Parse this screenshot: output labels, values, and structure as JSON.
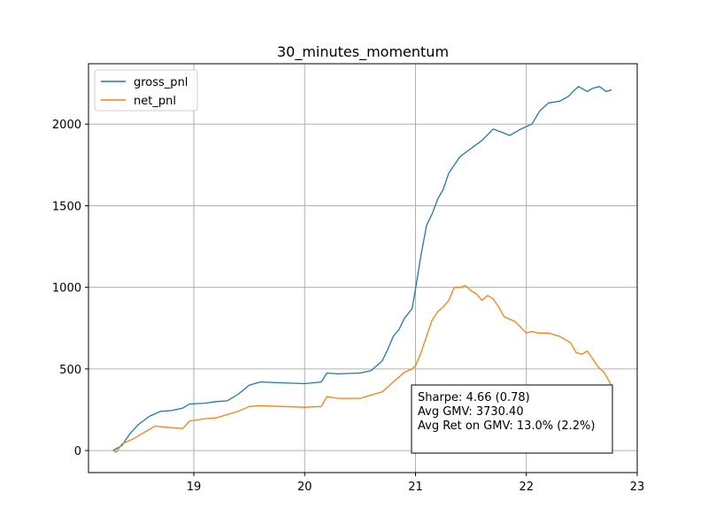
{
  "chart_data": {
    "type": "line",
    "title": "30_minutes_momentum",
    "xlabel": "",
    "ylabel": "",
    "xlim": [
      18.05,
      23.0
    ],
    "ylim": [
      -135,
      2370
    ],
    "x_ticks": [
      19,
      20,
      21,
      22,
      23
    ],
    "y_ticks": [
      0,
      500,
      1000,
      1500,
      2000
    ],
    "grid": true,
    "legend": "top-left",
    "series": [
      {
        "name": "gross_pnl",
        "color": "#1f77b4",
        "points": [
          [
            18.27,
            0
          ],
          [
            18.35,
            30
          ],
          [
            18.42,
            100
          ],
          [
            18.5,
            160
          ],
          [
            18.6,
            210
          ],
          [
            18.7,
            240
          ],
          [
            18.8,
            245
          ],
          [
            18.9,
            260
          ],
          [
            18.96,
            285
          ],
          [
            19.1,
            290
          ],
          [
            19.2,
            300
          ],
          [
            19.3,
            305
          ],
          [
            19.4,
            345
          ],
          [
            19.5,
            400
          ],
          [
            19.6,
            420
          ],
          [
            19.8,
            415
          ],
          [
            20.0,
            410
          ],
          [
            20.15,
            420
          ],
          [
            20.2,
            475
          ],
          [
            20.3,
            470
          ],
          [
            20.5,
            475
          ],
          [
            20.6,
            490
          ],
          [
            20.7,
            550
          ],
          [
            20.75,
            620
          ],
          [
            20.8,
            700
          ],
          [
            20.85,
            740
          ],
          [
            20.9,
            810
          ],
          [
            20.97,
            870
          ],
          [
            21.0,
            990
          ],
          [
            21.05,
            1200
          ],
          [
            21.1,
            1380
          ],
          [
            21.15,
            1450
          ],
          [
            21.2,
            1540
          ],
          [
            21.25,
            1600
          ],
          [
            21.3,
            1700
          ],
          [
            21.4,
            1800
          ],
          [
            21.5,
            1850
          ],
          [
            21.6,
            1900
          ],
          [
            21.7,
            1970
          ],
          [
            21.78,
            1950
          ],
          [
            21.85,
            1930
          ],
          [
            21.95,
            1970
          ],
          [
            22.05,
            2000
          ],
          [
            22.12,
            2080
          ],
          [
            22.2,
            2130
          ],
          [
            22.3,
            2140
          ],
          [
            22.38,
            2170
          ],
          [
            22.42,
            2200
          ],
          [
            22.47,
            2230
          ],
          [
            22.55,
            2200
          ],
          [
            22.6,
            2220
          ],
          [
            22.66,
            2230
          ],
          [
            22.72,
            2200
          ],
          [
            22.77,
            2210
          ]
        ]
      },
      {
        "name": "net_pnl",
        "color": "#ff7f0e",
        "points": [
          [
            18.27,
            0
          ],
          [
            18.3,
            -10
          ],
          [
            18.35,
            40
          ],
          [
            18.45,
            70
          ],
          [
            18.55,
            110
          ],
          [
            18.65,
            150
          ],
          [
            18.8,
            140
          ],
          [
            18.9,
            135
          ],
          [
            18.96,
            180
          ],
          [
            19.1,
            195
          ],
          [
            19.2,
            200
          ],
          [
            19.3,
            220
          ],
          [
            19.4,
            240
          ],
          [
            19.5,
            270
          ],
          [
            19.6,
            275
          ],
          [
            19.8,
            270
          ],
          [
            20.0,
            265
          ],
          [
            20.15,
            270
          ],
          [
            20.2,
            330
          ],
          [
            20.3,
            320
          ],
          [
            20.5,
            320
          ],
          [
            20.6,
            340
          ],
          [
            20.7,
            360
          ],
          [
            20.75,
            390
          ],
          [
            20.8,
            420
          ],
          [
            20.85,
            450
          ],
          [
            20.9,
            480
          ],
          [
            20.97,
            500
          ],
          [
            21.0,
            520
          ],
          [
            21.05,
            600
          ],
          [
            21.1,
            700
          ],
          [
            21.15,
            800
          ],
          [
            21.2,
            850
          ],
          [
            21.25,
            880
          ],
          [
            21.3,
            920
          ],
          [
            21.35,
            1000
          ],
          [
            21.4,
            1000
          ],
          [
            21.45,
            1010
          ],
          [
            21.5,
            980
          ],
          [
            21.55,
            960
          ],
          [
            21.6,
            920
          ],
          [
            21.65,
            950
          ],
          [
            21.7,
            930
          ],
          [
            21.75,
            880
          ],
          [
            21.8,
            820
          ],
          [
            21.9,
            790
          ],
          [
            22.0,
            720
          ],
          [
            22.05,
            730
          ],
          [
            22.1,
            720
          ],
          [
            22.2,
            720
          ],
          [
            22.25,
            710
          ],
          [
            22.3,
            700
          ],
          [
            22.35,
            680
          ],
          [
            22.4,
            660
          ],
          [
            22.45,
            600
          ],
          [
            22.5,
            590
          ],
          [
            22.55,
            610
          ],
          [
            22.6,
            560
          ],
          [
            22.65,
            510
          ],
          [
            22.7,
            480
          ],
          [
            22.75,
            420
          ],
          [
            22.77,
            390
          ]
        ]
      }
    ],
    "annotation": {
      "lines": [
        "Sharpe: 4.66 (0.78)",
        "Avg GMV: 3730.40",
        "Avg Ret on GMV: 13.0% (2.2%)"
      ]
    }
  }
}
